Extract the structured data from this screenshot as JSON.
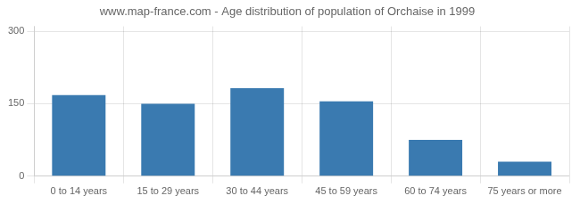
{
  "chart_data": {
    "type": "bar",
    "title": "www.map-france.com - Age distribution of population of Orchaise in 1999",
    "categories": [
      "0 to 14 years",
      "15 to 29 years",
      "30 to 44 years",
      "45 to 59 years",
      "60 to 74 years",
      "75 years or more"
    ],
    "values": [
      168,
      150,
      182,
      155,
      75,
      30
    ],
    "color": "#3a7ab0",
    "ylim": [
      0,
      310
    ],
    "yticks": [
      0,
      150,
      300
    ],
    "grid": true
  }
}
